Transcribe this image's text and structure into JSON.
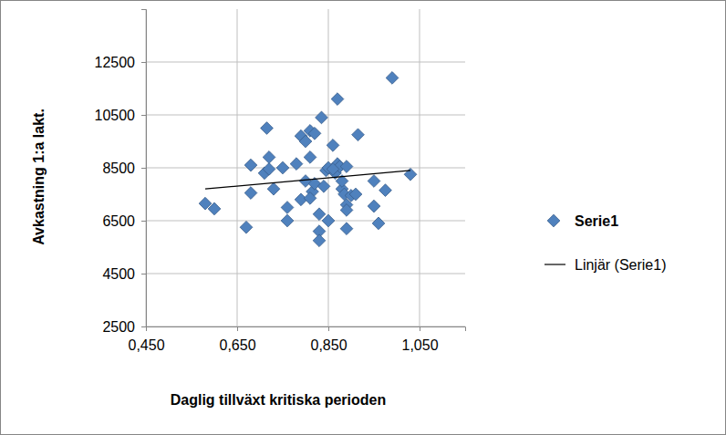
{
  "chart_data": {
    "type": "scatter",
    "x_label": "Daglig tillväxt kritiska perioden",
    "y_label": "Avkastning 1:a lakt.",
    "xlim": [
      0.45,
      1.15
    ],
    "xticks": [
      {
        "value": 0.45,
        "label": "0,450"
      },
      {
        "value": 0.65,
        "label": "0,650"
      },
      {
        "value": 0.85,
        "label": "0,850"
      },
      {
        "value": 1.05,
        "label": "1,050"
      }
    ],
    "ylim": [
      2500,
      14500
    ],
    "yticks": [
      2500,
      4500,
      6500,
      8500,
      10500,
      12500
    ],
    "grid": true,
    "legend": "right",
    "series": [
      {
        "name": "Serie1",
        "type": "scatter",
        "marker": "diamond",
        "color": "#4f81bd",
        "x": [
          0.58,
          0.6,
          0.67,
          0.68,
          0.68,
          0.71,
          0.715,
          0.72,
          0.72,
          0.73,
          0.75,
          0.76,
          0.76,
          0.78,
          0.79,
          0.79,
          0.8,
          0.8,
          0.81,
          0.81,
          0.82,
          0.815,
          0.81,
          0.82,
          0.83,
          0.83,
          0.83,
          0.835,
          0.84,
          0.845,
          0.85,
          0.85,
          0.86,
          0.865,
          0.87,
          0.87,
          0.875,
          0.88,
          0.88,
          0.885,
          0.89,
          0.89,
          0.89,
          0.89,
          0.9,
          0.91,
          0.915,
          0.95,
          0.95,
          0.96,
          0.975,
          0.99,
          1.03,
          0.86
        ],
        "values": [
          7150,
          6950,
          6250,
          8600,
          7550,
          8300,
          10000,
          8450,
          8900,
          7700,
          8500,
          6500,
          7000,
          8650,
          9700,
          7300,
          9500,
          8000,
          9900,
          8900,
          9800,
          7600,
          7350,
          7900,
          6750,
          6100,
          5750,
          10400,
          7800,
          8400,
          8500,
          6500,
          9350,
          8300,
          11100,
          8650,
          8550,
          7700,
          8000,
          7500,
          8550,
          7100,
          6900,
          6200,
          7450,
          7500,
          9750,
          8000,
          7050,
          6400,
          7650,
          11900,
          8250,
          8450
        ]
      },
      {
        "name": "Linjär (Serie1)",
        "type": "line",
        "line_style": "solid",
        "color": "#000000",
        "x": [
          0.58,
          1.03
        ],
        "values": [
          7700,
          8400
        ]
      }
    ]
  }
}
